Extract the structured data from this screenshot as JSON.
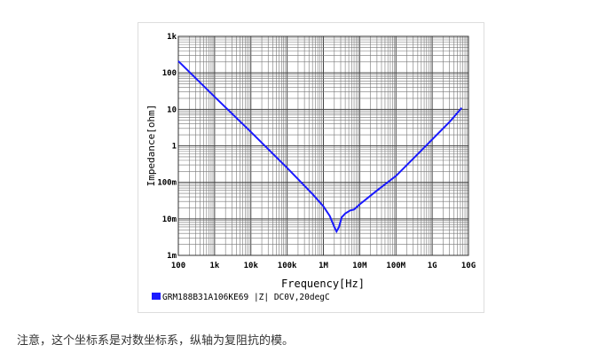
{
  "chart_data": {
    "type": "line",
    "xlabel": "Frequency[Hz]",
    "ylabel": "Impedance[ohm]",
    "xscale": "log",
    "yscale": "log",
    "xlim": [
      100,
      10000000000
    ],
    "ylim": [
      0.001,
      1000
    ],
    "xticks": [
      {
        "v": 100,
        "label": "100"
      },
      {
        "v": 1000,
        "label": "1k"
      },
      {
        "v": 10000,
        "label": "10k"
      },
      {
        "v": 100000,
        "label": "100k"
      },
      {
        "v": 1000000,
        "label": "1M"
      },
      {
        "v": 10000000,
        "label": "10M"
      },
      {
        "v": 100000000,
        "label": "100M"
      },
      {
        "v": 1000000000,
        "label": "1G"
      },
      {
        "v": 10000000000,
        "label": "10G"
      }
    ],
    "yticks": [
      {
        "v": 0.001,
        "label": "1m"
      },
      {
        "v": 0.01,
        "label": "10m"
      },
      {
        "v": 0.1,
        "label": "100m"
      },
      {
        "v": 1,
        "label": "1"
      },
      {
        "v": 10,
        "label": "10"
      },
      {
        "v": 100,
        "label": "100"
      },
      {
        "v": 1000,
        "label": "1k"
      }
    ],
    "grid": true,
    "legend_position": "bottom-left",
    "series": [
      {
        "name": "GRM188B31A106KE69 |Z| DC0V,20degC",
        "color": "#1a1aff",
        "x": [
          100,
          1000,
          10000,
          100000,
          500000,
          1000000,
          1500000,
          2000000,
          2300000,
          2700000,
          3200000,
          4000000,
          5500000,
          7000000,
          10000000,
          30000000,
          100000000,
          300000000,
          1000000000,
          3000000000,
          6500000000
        ],
        "y": [
          210,
          22,
          2.4,
          0.25,
          0.048,
          0.022,
          0.012,
          0.006,
          0.0045,
          0.006,
          0.011,
          0.014,
          0.017,
          0.018,
          0.025,
          0.06,
          0.15,
          0.45,
          1.5,
          4.5,
          11
        ]
      }
    ]
  },
  "caption": "注意，这个坐标系是对数坐标系，纵轴为复阻抗的模。"
}
